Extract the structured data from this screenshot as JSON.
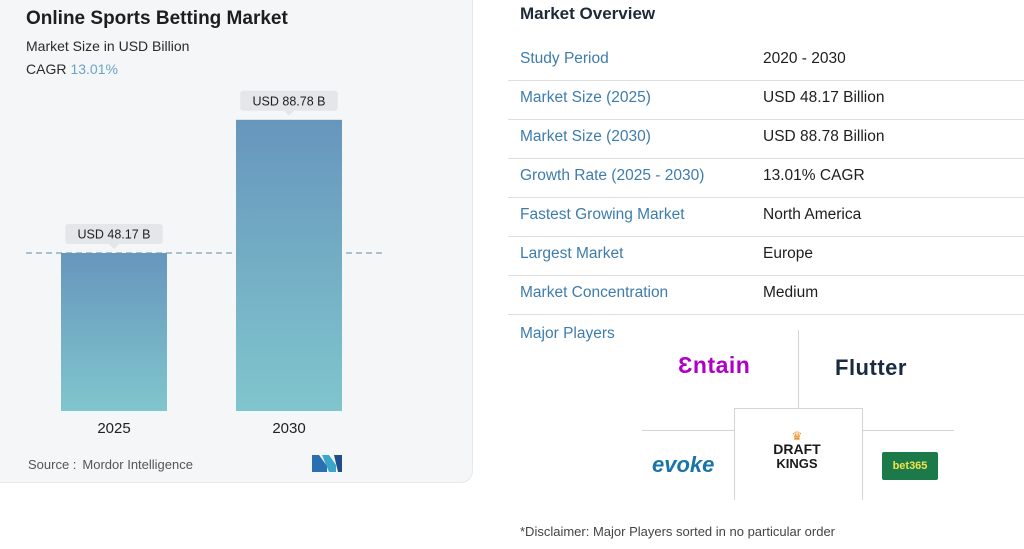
{
  "chart_data": {
    "type": "bar",
    "title": "Online Sports Betting Market",
    "subtitle": "Market Size in USD Billion",
    "cagr_label": "CAGR",
    "cagr_value": "13.01%",
    "categories": [
      "2025",
      "2030"
    ],
    "values": [
      48.17,
      88.78
    ],
    "data_labels": [
      "USD 48.17 B",
      "USD 88.78 B"
    ],
    "ylim": [
      0,
      100
    ],
    "reference_line": 48.17,
    "source_label": "Source :",
    "source_value": "Mordor Intelligence",
    "bar_color_top": "#6796bd",
    "bar_color_bottom": "#80c6cd"
  },
  "overview": {
    "title": "Market Overview",
    "rows": [
      {
        "label": "Study Period",
        "value": "2020 - 2030"
      },
      {
        "label": "Market Size (2025)",
        "value": "USD 48.17 Billion"
      },
      {
        "label": "Market Size (2030)",
        "value": "USD 88.78 Billion"
      },
      {
        "label": "Growth Rate (2025 - 2030)",
        "value": "13.01% CAGR"
      },
      {
        "label": "Fastest Growing Market",
        "value": "North America"
      },
      {
        "label": "Largest Market",
        "value": "Europe"
      },
      {
        "label": "Market Concentration",
        "value": "Medium"
      }
    ],
    "major_players_label": "Major Players",
    "players": {
      "entain": "Ɛntain",
      "flutter": "Flutter",
      "evoke": "evoke",
      "draftkings_top": "DRAFT",
      "draftkings_bottom": "KINGS",
      "bet365": "bet365"
    },
    "disclaimer": "*Disclaimer: Major Players sorted in no particular order"
  }
}
